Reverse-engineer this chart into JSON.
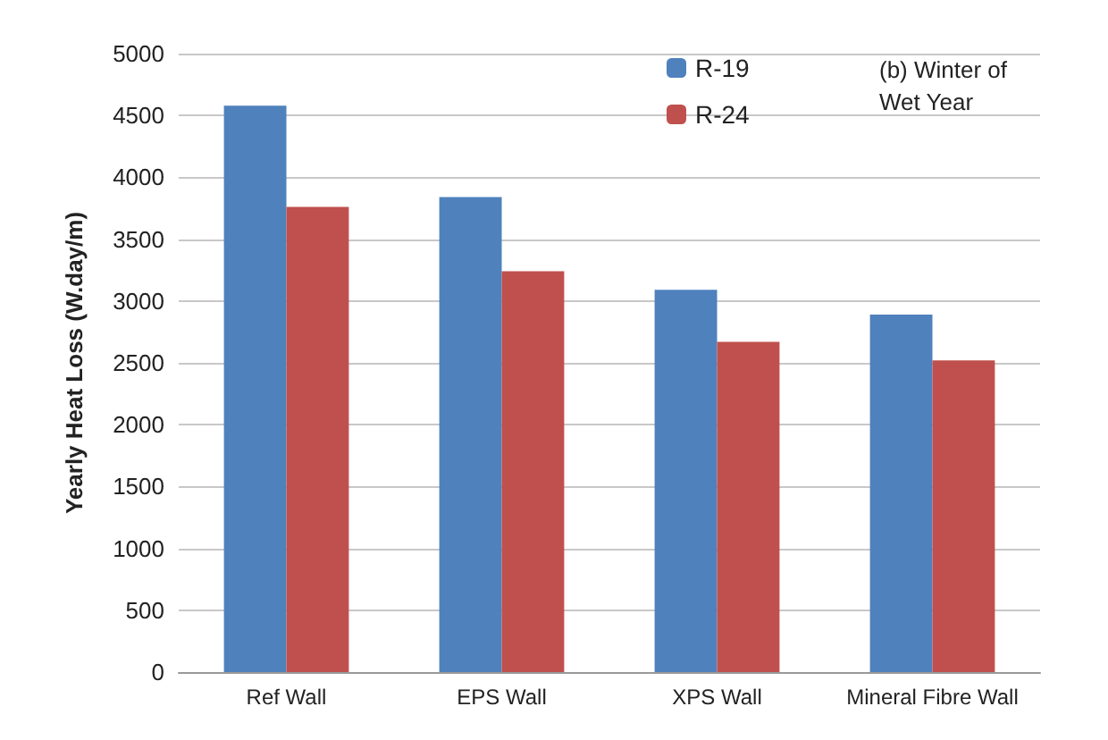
{
  "chart_data": {
    "type": "bar",
    "ylabel": "Yearly Heat Loss (W.day/m)",
    "categories": [
      "Ref Wall",
      "EPS Wall",
      "XPS Wall",
      "Mineral Fibre Wall"
    ],
    "series": [
      {
        "name": "R-19",
        "color": "#4f81bd",
        "values": [
          4580,
          3840,
          3090,
          2890
        ]
      },
      {
        "name": "R-24",
        "color": "#c0504d",
        "values": [
          3760,
          3240,
          2670,
          2520
        ]
      }
    ],
    "ylim": [
      0,
      5000
    ],
    "yticks": [
      0,
      500,
      1000,
      1500,
      2000,
      2500,
      3000,
      3500,
      4000,
      4500,
      5000
    ],
    "grid": "y",
    "legend": "top",
    "annotations": [
      "(b) Winter of Wet Year"
    ]
  }
}
